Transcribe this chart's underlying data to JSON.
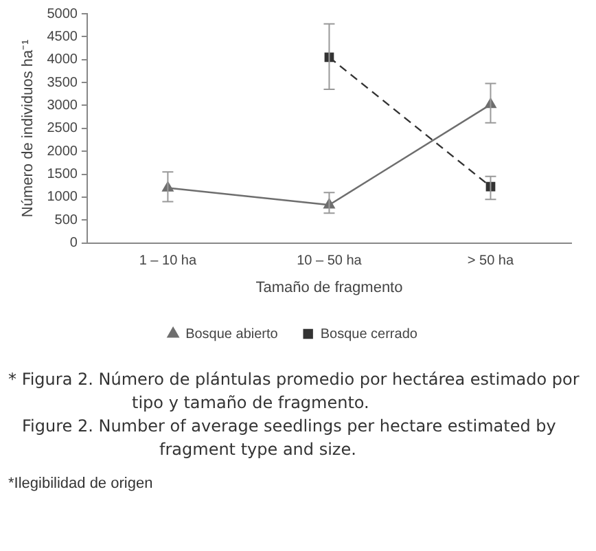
{
  "chart_data": {
    "type": "line",
    "xlabel": "Tamaño de fragmento",
    "ylabel": "Número de individuos ha⁻¹",
    "categories": [
      "1 – 10 ha",
      "10 – 50 ha",
      "> 50 ha"
    ],
    "series": [
      {
        "name": "Bosque abierto",
        "color": "#6e6e6e",
        "marker": "triangle",
        "line_style": "solid",
        "values": [
          1200,
          830,
          3020
        ],
        "errors": [
          [
            900,
            1550
          ],
          [
            650,
            1100
          ],
          [
            2620,
            3480
          ]
        ]
      },
      {
        "name": "Bosque cerrado",
        "color": "#333333",
        "marker": "square",
        "line_style": "dashed",
        "values": [
          null,
          4050,
          1230
        ],
        "errors": [
          null,
          [
            3350,
            4780
          ],
          [
            950,
            1450
          ]
        ]
      }
    ],
    "ylim": [
      0,
      5000
    ],
    "yticks": [
      0,
      500,
      1000,
      1500,
      2000,
      2500,
      3000,
      3500,
      4000,
      4500,
      5000
    ],
    "grid": false,
    "legend": "bottom",
    "annotations": [
      "* Figura 2. Número de plántulas promedio por hectárea estimado por tipo y tamaño de fragmento.",
      "Figure 2. Number of average seedlings per hectare estimated by fragment type and size.",
      "*Ilegibilidad de origen"
    ]
  }
}
